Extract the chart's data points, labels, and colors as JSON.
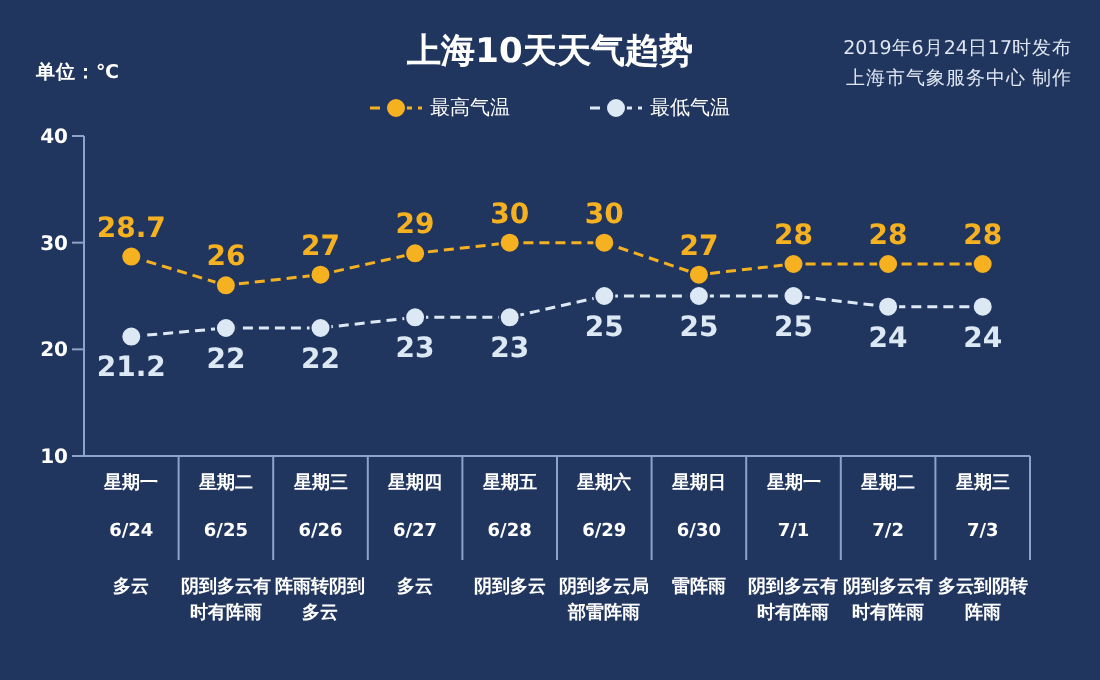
{
  "chart_data": {
    "type": "line",
    "title": "上海10天天气趋势",
    "subtitle": "2019年6月24日17时发布",
    "ylabel": "单位：℃",
    "categories": [
      "星期一 6/24",
      "星期二 6/25",
      "星期三 6/26",
      "星期四 6/27",
      "星期五 6/28",
      "星期六 6/29",
      "星期日 6/30",
      "星期一 7/1",
      "星期二 7/2",
      "星期三 7/3"
    ],
    "series": [
      {
        "name": "最高气温",
        "color": "#f5b120",
        "values": [
          28.7,
          26,
          27,
          29,
          30,
          30,
          27,
          28,
          28,
          28
        ]
      },
      {
        "name": "最低气温",
        "color": "#dde8f5",
        "values": [
          21.2,
          22,
          22,
          23,
          23,
          25,
          25,
          25,
          24,
          24
        ]
      }
    ],
    "ylim": [
      10,
      40
    ],
    "yticks": [
      10,
      20,
      30,
      40
    ],
    "grid": false,
    "legend": "top",
    "marker": "circle",
    "line_style": "dashed",
    "data_labels": true,
    "annotations": [
      "多云",
      "阴到多云有时有阵雨",
      "阵雨转阴到多云",
      "多云",
      "阴到多云",
      "阴到多云局部雷阵雨",
      "雷阵雨",
      "阴到多云有时有阵雨",
      "阴到多云有时有阵雨",
      "多云到阴转阵雨",
      "上海市气象服务中心  制作"
    ]
  }
}
